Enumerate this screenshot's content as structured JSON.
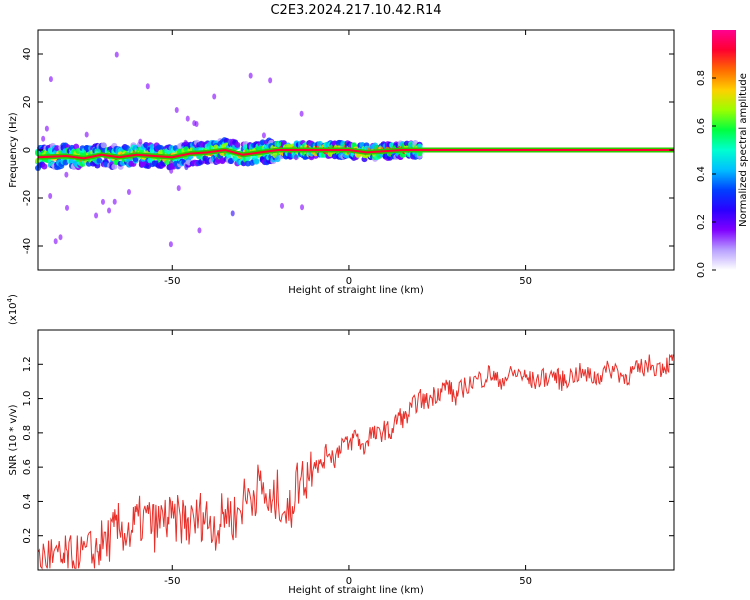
{
  "title": "C2E3.2024.217.10.42.R14",
  "colors": {
    "snr_line": "#e8302a",
    "ridge": "#2ec800",
    "background": "#ffffff"
  },
  "colormap_stops": [
    "#ffffff",
    "#b8a0ff",
    "#8000ff",
    "#2a00ff",
    "#0040ff",
    "#00bfff",
    "#00ffd0",
    "#00ff40",
    "#9cff00",
    "#ffd000",
    "#ff6a00",
    "#ff0030",
    "#ff0090"
  ],
  "chart_data": [
    {
      "type": "heatmap",
      "xlabel": "Height of straight line (km)",
      "ylabel": "Frequency (Hz)",
      "xlim": [
        -88,
        92
      ],
      "ylim": [
        -50,
        50
      ],
      "xticks": [
        -50,
        0,
        50
      ],
      "yticks": [
        -40,
        -20,
        0,
        20,
        40
      ],
      "ridge": {
        "x": [
          -88,
          -80,
          -75,
          -70,
          -65,
          -60,
          -55,
          -50,
          -45,
          -40,
          -35,
          -30,
          -25,
          -20,
          -15,
          -10,
          -5,
          0,
          5,
          10,
          15,
          20,
          30,
          40,
          50,
          60,
          70,
          80,
          92
        ],
        "y": [
          -3,
          -2.5,
          -3.5,
          -2,
          -3,
          -2,
          -2.5,
          -3,
          -1.5,
          -1,
          0,
          -2,
          -1,
          0,
          0,
          0,
          0,
          0,
          -1,
          -0.5,
          0,
          0,
          0,
          0,
          0,
          0,
          0,
          0,
          0
        ]
      },
      "colorbar": {
        "label": "Normalized spectral amplitude",
        "ticks": [
          0.0,
          0.2,
          0.4,
          0.6,
          0.8
        ],
        "range": [
          0,
          1
        ]
      }
    },
    {
      "type": "line",
      "xlabel": "Height of straight line (km)",
      "ylabel": "SNR (10 * v/v)",
      "multiplier_label": "(x10",
      "multiplier_exp": "4",
      "xlim": [
        -88,
        92
      ],
      "ylim": [
        0,
        1.4
      ],
      "xticks": [
        -50,
        0,
        50
      ],
      "yticks": [
        0.2,
        0.4,
        0.6,
        0.8,
        1.0,
        1.2
      ],
      "series": [
        {
          "x": [
            -88,
            -85,
            -82,
            -80,
            -78,
            -75,
            -72,
            -70,
            -67,
            -65,
            -62,
            -60,
            -57,
            -55,
            -52,
            -50,
            -47,
            -45,
            -42,
            -40,
            -37,
            -35,
            -32,
            -30,
            -27,
            -25,
            -22,
            -20,
            -17,
            -15,
            -12,
            -10,
            -8,
            -6,
            -4,
            -2,
            0,
            2,
            4,
            6,
            8,
            10,
            12,
            14,
            16,
            18,
            20,
            22,
            24,
            26,
            28,
            30,
            32,
            35,
            38,
            40,
            42,
            45,
            48,
            50,
            52,
            55,
            58,
            60,
            62,
            65,
            68,
            70,
            72,
            75,
            78,
            80,
            82,
            85,
            88,
            90,
            92
          ],
          "values": [
            0.05,
            0.08,
            0.04,
            0.06,
            0.05,
            0.08,
            0.1,
            0.15,
            0.2,
            0.25,
            0.22,
            0.28,
            0.3,
            0.25,
            0.3,
            0.28,
            0.3,
            0.25,
            0.32,
            0.3,
            0.25,
            0.35,
            0.3,
            0.4,
            0.45,
            0.5,
            0.35,
            0.45,
            0.3,
            0.5,
            0.55,
            0.65,
            0.6,
            0.7,
            0.65,
            0.75,
            0.72,
            0.8,
            0.7,
            0.8,
            0.78,
            0.82,
            0.8,
            0.9,
            0.88,
            0.95,
            1.0,
            0.98,
            1.02,
            1.05,
            1.08,
            1.0,
            1.06,
            1.1,
            1.12,
            1.15,
            1.1,
            1.13,
            1.15,
            1.12,
            1.1,
            1.12,
            1.14,
            1.1,
            1.12,
            1.15,
            1.13,
            1.12,
            1.15,
            1.18,
            1.12,
            1.15,
            1.17,
            1.2,
            1.18,
            1.2,
            1.22
          ]
        }
      ]
    }
  ]
}
